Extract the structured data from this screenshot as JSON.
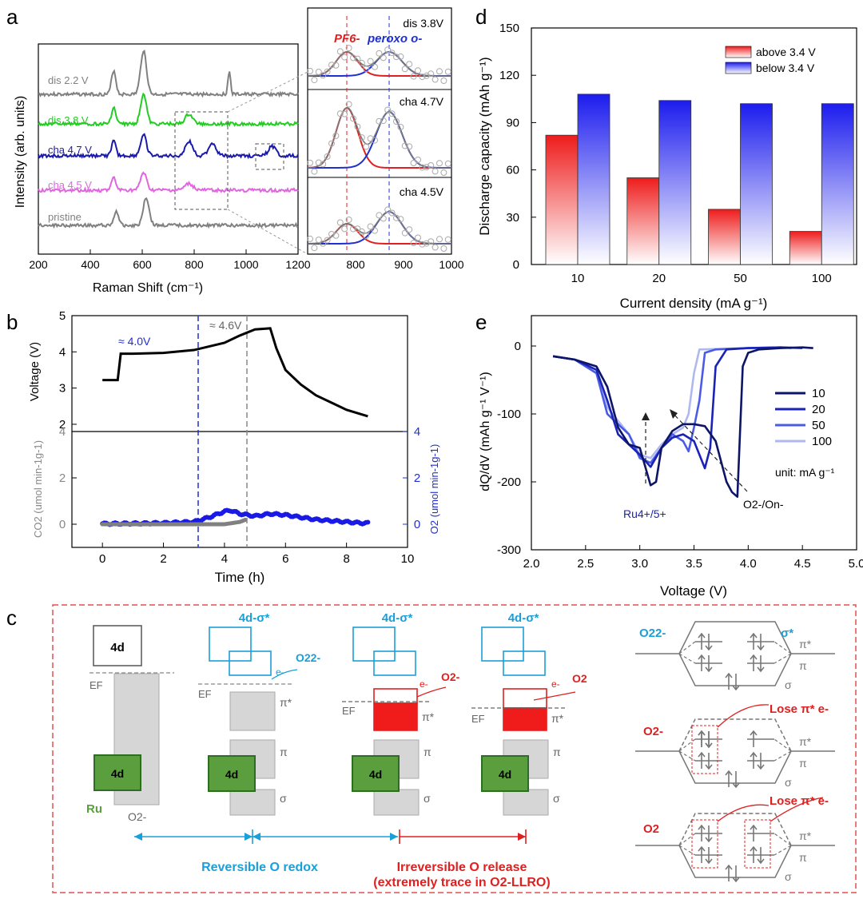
{
  "panels": {
    "a": {
      "letter": "a",
      "xlabel": "Raman Shift (cm⁻¹)",
      "ylabel": "Intensity (arb. units)",
      "xticks": [
        "200",
        "400",
        "600",
        "800",
        "1000",
        "1200"
      ],
      "traces": [
        {
          "label": "dis 2.2 V",
          "color": "#808080"
        },
        {
          "label": "dis 3.8 V",
          "color": "#22cc22"
        },
        {
          "label": "cha 4.7 V",
          "color": "#1a1aaa"
        },
        {
          "label": "cha 4.5 V",
          "color": "#e066e0"
        },
        {
          "label": "pristine",
          "color": "#808080"
        }
      ],
      "inset": {
        "labels": [
          "dis 3.8V",
          "cha 4.7V",
          "cha 4.5V"
        ],
        "pf6_label": "PF6-",
        "peroxo_label": "peroxo o-",
        "xticks": [
          "800",
          "900",
          "1000"
        ]
      }
    },
    "b": {
      "letter": "b",
      "voltage_label": "Voltage (V)",
      "co2_label": "CO2 (umol min-1g-1)",
      "o2_label": "O2 (umol min-1g-1)",
      "xlabel": "Time (h)",
      "v_ticks": [
        "2",
        "3",
        "4",
        "5"
      ],
      "gas_ticks_left": [
        "0",
        "2",
        "4"
      ],
      "gas_ticks_right": [
        "0",
        "2",
        "4"
      ],
      "xticks": [
        "0",
        "2",
        "4",
        "6",
        "8",
        "10"
      ],
      "annot_40": "≈ 4.0V",
      "annot_46": "≈ 4.6V"
    },
    "d": {
      "letter": "d",
      "ylabel": "Discharge capacity (mAh g⁻¹)",
      "xlabel": "Current density (mA g⁻¹)",
      "yticks": [
        "0",
        "30",
        "60",
        "90",
        "120",
        "150"
      ],
      "legend": [
        "above 3.4 V",
        "below 3.4 V"
      ]
    },
    "e": {
      "letter": "e",
      "ylabel": "dQ/dV (mAh g⁻¹ V⁻¹)",
      "xlabel": "Voltage (V)",
      "xticks": [
        "2.0",
        "2.5",
        "3.0",
        "3.5",
        "4.0",
        "4.5",
        "5.0"
      ],
      "yticks": [
        "0",
        "-100",
        "-200",
        "-300"
      ],
      "legend": [
        "10",
        "20",
        "50",
        "100"
      ],
      "unit_note": "unit: mA g⁻¹",
      "ru_label": "Ru4+/5+",
      "o_label": "O2-/On-"
    },
    "c": {
      "letter": "c",
      "labels": {
        "d4": "4d",
        "ef": "EF",
        "ru": "Ru",
        "o2minus": "O2-",
        "sigma_star": "4d-σ*",
        "pi_star": "π*",
        "pi": "π",
        "sigma": "σ",
        "e": "e-",
        "o22": "O22-",
        "o2m": "O2-",
        "o2": "O2",
        "sigma_star_mo": "σ*",
        "lose1": "Lose π* e-",
        "lose2": "Lose π* e-",
        "reversible": "Reversible O redox",
        "irreversible1": "Irreversible O release",
        "irreversible2": "(extremely trace in O2-LLRO)"
      }
    }
  },
  "chart_data": [
    {
      "type": "bar",
      "title": "",
      "categories": [
        "10",
        "20",
        "50",
        "100"
      ],
      "series": [
        {
          "name": "above 3.4 V",
          "values": [
            82,
            55,
            35,
            21
          ],
          "color": "#ee2222"
        },
        {
          "name": "below 3.4 V",
          "values": [
            108,
            104,
            102,
            102
          ],
          "color": "#2222ee"
        }
      ],
      "xlabel": "Current density (mA g⁻¹)",
      "ylabel": "Discharge capacity (mAh g⁻¹)",
      "ylim": [
        0,
        150
      ]
    },
    {
      "type": "line",
      "title": "",
      "xlabel": "Voltage (V)",
      "ylabel": "dQ/dV (mAh g⁻¹ V⁻¹)",
      "xlim": [
        2.0,
        5.0
      ],
      "ylim": [
        -300,
        10
      ],
      "series": [
        {
          "name": "10",
          "color": "#0d1566",
          "x": [
            2.2,
            2.4,
            2.6,
            2.7,
            2.8,
            2.9,
            3.0,
            3.1,
            3.15,
            3.2,
            3.3,
            3.4,
            3.5,
            3.6,
            3.7,
            3.75,
            3.8,
            3.85,
            3.9,
            3.95,
            4.0,
            4.1,
            4.3,
            4.5,
            4.6
          ],
          "y": [
            -15,
            -20,
            -30,
            -60,
            -120,
            -145,
            -150,
            -205,
            -200,
            -150,
            -125,
            -115,
            -115,
            -118,
            -140,
            -170,
            -200,
            -215,
            -222,
            -30,
            -10,
            -5,
            -3,
            -2,
            -3
          ]
        },
        {
          "name": "20",
          "color": "#1a23b5",
          "x": [
            2.2,
            2.4,
            2.6,
            2.7,
            2.8,
            2.9,
            3.0,
            3.1,
            3.2,
            3.3,
            3.4,
            3.5,
            3.55,
            3.6,
            3.65,
            3.7,
            3.8,
            4.0,
            4.3,
            4.5
          ],
          "y": [
            -15,
            -20,
            -35,
            -80,
            -130,
            -145,
            -160,
            -178,
            -150,
            -135,
            -130,
            -140,
            -160,
            -180,
            -150,
            -30,
            -5,
            -3,
            -2,
            -3
          ]
        },
        {
          "name": "50",
          "color": "#4a5ce6",
          "x": [
            2.2,
            2.4,
            2.6,
            2.7,
            2.8,
            2.9,
            3.0,
            3.1,
            3.2,
            3.3,
            3.4,
            3.45,
            3.5,
            3.55,
            3.6,
            3.7,
            4.0,
            4.3,
            4.4
          ],
          "y": [
            -15,
            -20,
            -40,
            -100,
            -115,
            -130,
            -165,
            -172,
            -150,
            -130,
            -140,
            -155,
            -120,
            -80,
            -10,
            -5,
            -3,
            -2,
            -3
          ]
        },
        {
          "name": "100",
          "color": "#b0b8f0",
          "x": [
            2.2,
            2.4,
            2.6,
            2.7,
            2.8,
            2.9,
            3.0,
            3.1,
            3.2,
            3.3,
            3.4,
            3.45,
            3.5,
            3.55,
            4.0,
            4.3
          ],
          "y": [
            -15,
            -20,
            -40,
            -90,
            -110,
            -130,
            -160,
            -165,
            -145,
            -130,
            -120,
            -100,
            -40,
            -5,
            -3,
            -3
          ]
        }
      ]
    },
    {
      "type": "line",
      "title": "",
      "xlabel": "Time (h)",
      "ylabel": "Voltage (V)",
      "xlim": [
        -1,
        10
      ],
      "ylim": [
        1.8,
        5
      ],
      "series": [
        {
          "name": "",
          "color": "#000000",
          "x": [
            0,
            0.5,
            0.6,
            1.0,
            2.0,
            3.0,
            4.0,
            4.5,
            5.0,
            5.5,
            5.7,
            6.0,
            6.5,
            7.0,
            7.5,
            8.0,
            8.7
          ],
          "y": [
            3.22,
            3.22,
            3.95,
            3.95,
            3.97,
            4.05,
            4.25,
            4.45,
            4.62,
            4.65,
            4.1,
            3.5,
            3.1,
            2.8,
            2.6,
            2.4,
            2.22
          ]
        }
      ]
    },
    {
      "type": "scatter",
      "title": "",
      "xlabel": "Time (h)",
      "ylabel": "O2 (umol min-1g-1)",
      "xlim": [
        -1,
        10
      ],
      "ylim": [
        -1,
        4
      ],
      "series": [
        {
          "name": "",
          "color": "#1a1ae6",
          "x": [
            0,
            1,
            2,
            3,
            3.5,
            4,
            4.2,
            4.5,
            5,
            5.5,
            6,
            6.5,
            7,
            7.5,
            8,
            8.5,
            8.7
          ],
          "y": [
            0.02,
            0.03,
            0.05,
            0.1,
            0.3,
            0.55,
            0.6,
            0.45,
            0.35,
            0.45,
            0.4,
            0.3,
            0.2,
            0.15,
            0.1,
            0.05,
            0.05
          ]
        },
        {
          "name": "",
          "color": "#808080",
          "x": [
            0,
            1,
            2,
            3,
            4,
            4.5,
            4.7
          ],
          "y": [
            0,
            0,
            0,
            0,
            0,
            0.1,
            0.2
          ]
        }
      ]
    }
  ]
}
